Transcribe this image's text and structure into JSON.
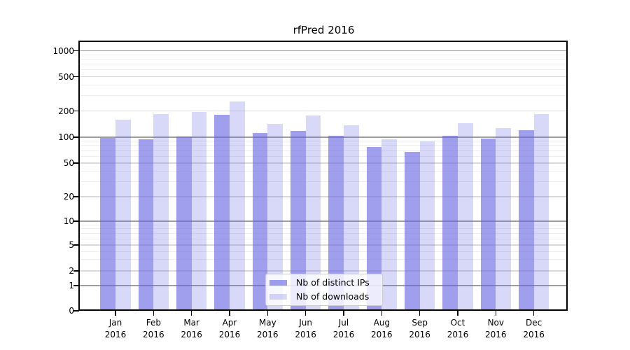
{
  "title": "rfPred 2016",
  "chart_data": {
    "type": "bar",
    "title": "rfPred 2016",
    "categories": [
      "Jan 2016",
      "Feb 2016",
      "Mar 2016",
      "Apr 2016",
      "May 2016",
      "Jun 2016",
      "Jul 2016",
      "Aug 2016",
      "Sep 2016",
      "Oct 2016",
      "Nov 2016",
      "Dec 2016"
    ],
    "series": [
      {
        "name": "Nb of distinct IPs",
        "color": "rgba(100,100,228,0.62)",
        "values": [
          99,
          95,
          102,
          182,
          112,
          118,
          104,
          77,
          68,
          104,
          96,
          120
        ]
      },
      {
        "name": "Nb of downloads",
        "color": "rgba(100,100,228,0.25)",
        "values": [
          160,
          186,
          197,
          258,
          143,
          178,
          137,
          95,
          89,
          146,
          127,
          186
        ]
      }
    ],
    "xlabel": "",
    "ylabel": "",
    "yscale": "symlog",
    "yticks": [
      0,
      1,
      2,
      5,
      10,
      20,
      50,
      100,
      200,
      500,
      1000
    ],
    "ytick_labels": [
      "0",
      "1",
      "2",
      "5",
      "10",
      "20",
      "50",
      "100",
      "200",
      "500",
      "1000"
    ],
    "ylim": [
      0,
      1300
    ],
    "grid": true,
    "legend_position": "lower center"
  },
  "colors": {
    "background": "#ffffff",
    "bar_distinct_ips": "rgba(100,100,228,0.62)",
    "bar_downloads": "rgba(100,100,228,0.25)",
    "grid_power10": "#9e9e9e",
    "grid_labeled": "#d9d9d9",
    "grid_minor": "#eeeeee",
    "spine": "#000000"
  }
}
